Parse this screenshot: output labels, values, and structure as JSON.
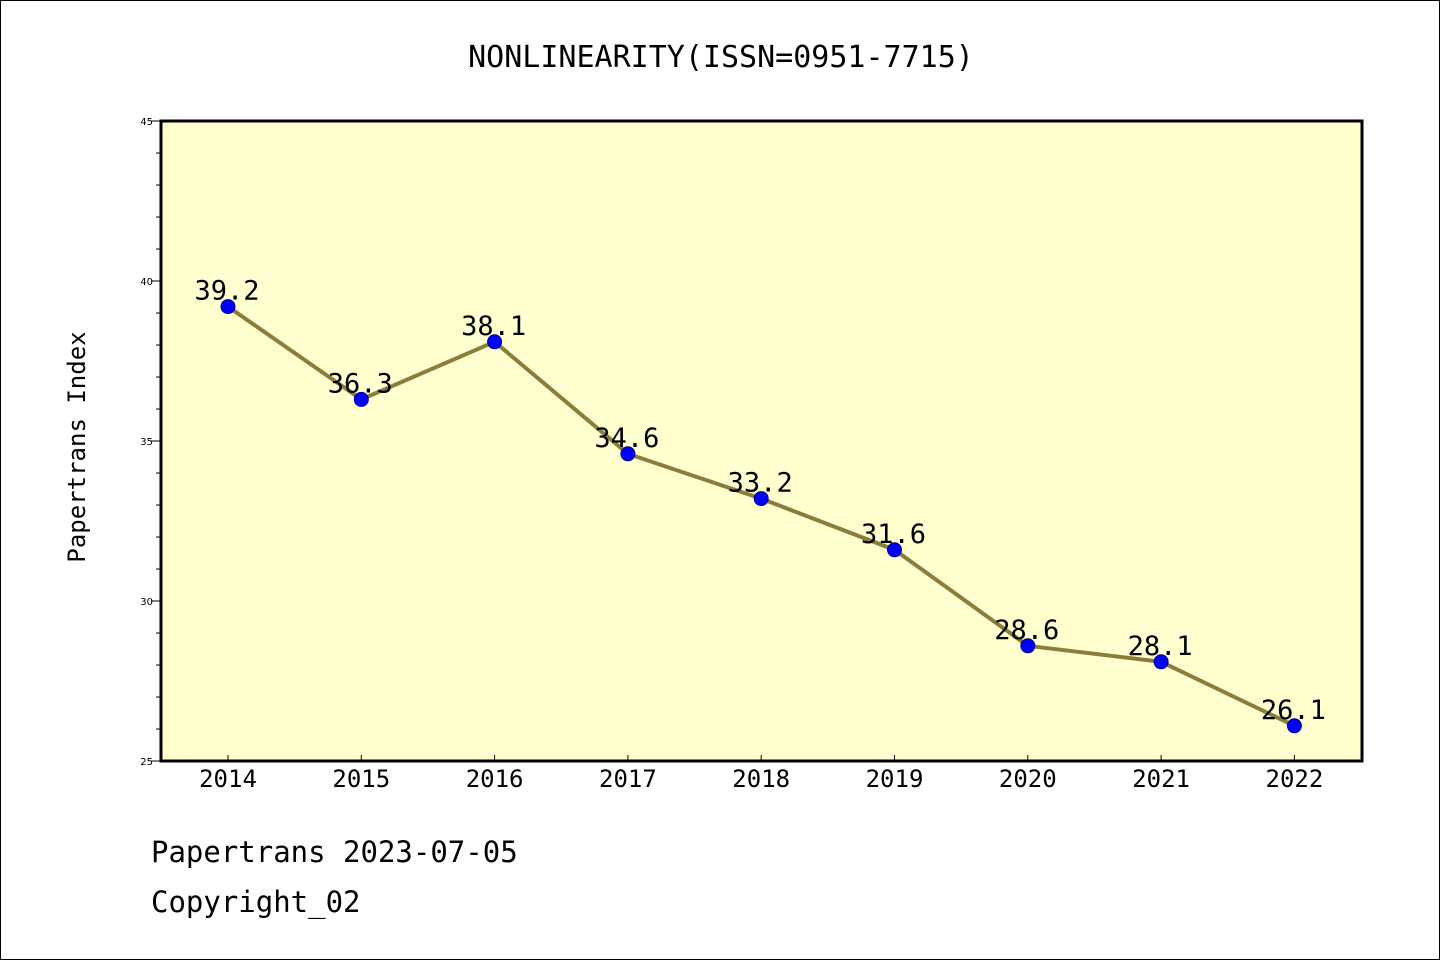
{
  "chart_data": {
    "type": "line",
    "title": "NONLINEARITY(ISSN=0951-7715)",
    "xlabel": "",
    "ylabel": "Papertrans Index",
    "categories": [
      "2014",
      "2015",
      "2016",
      "2017",
      "2018",
      "2019",
      "2020",
      "2021",
      "2022"
    ],
    "series": [
      {
        "values": [
          39.2,
          36.3,
          38.1,
          34.6,
          33.2,
          31.6,
          28.6,
          28.1,
          26.1
        ],
        "labels": [
          "39.2",
          "36.3",
          "38.1",
          "34.6",
          "33.2",
          "31.6",
          "28.6",
          "28.1",
          "26.1"
        ]
      }
    ],
    "ylim": [
      25,
      45
    ],
    "yticks": [
      "25",
      "30",
      "35",
      "40",
      "45"
    ],
    "grid": false,
    "legend": "none",
    "colors": {
      "plot_background": "#ffffd0",
      "line": "#8b7d3a",
      "marker": "#0000ff",
      "marker_edge": "#00008b",
      "axis": "#000000"
    }
  },
  "footer": {
    "source": "Papertrans 2023-07-05",
    "copyright": "Copyright_02"
  }
}
